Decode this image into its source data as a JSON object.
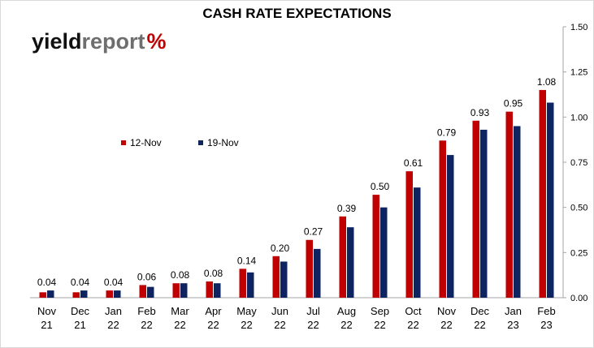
{
  "chart_data": {
    "type": "bar",
    "title": "CASH RATE EXPECTATIONS",
    "categories": [
      "Nov\n21",
      "Dec\n21",
      "Jan\n22",
      "Feb\n22",
      "Mar\n22",
      "Apr\n22",
      "May\n22",
      "Jun\n22",
      "Jul\n22",
      "Aug\n22",
      "Sep\n22",
      "Oct\n22",
      "Nov\n22",
      "Dec\n22",
      "Jan\n23",
      "Feb\n23"
    ],
    "series": [
      {
        "name": "12-Nov",
        "color": "#c00000",
        "values": [
          0.03,
          0.03,
          0.04,
          0.07,
          0.08,
          0.09,
          0.16,
          0.23,
          0.32,
          0.45,
          0.57,
          0.7,
          0.87,
          0.98,
          1.03,
          1.15
        ]
      },
      {
        "name": "19-Nov",
        "color": "#0d2461",
        "values": [
          0.04,
          0.04,
          0.04,
          0.06,
          0.08,
          0.08,
          0.14,
          0.2,
          0.27,
          0.39,
          0.5,
          0.61,
          0.79,
          0.93,
          0.95,
          1.08
        ]
      }
    ],
    "data_labels": [
      "0.04",
      "0.04",
      "0.04",
      "0.06",
      "0.08",
      "0.08",
      "0.14",
      "0.20",
      "0.27",
      "0.39",
      "0.50",
      "0.61",
      "0.79",
      "0.93",
      "0.95",
      "1.08"
    ],
    "y_ticks": [
      "0.00",
      "0.25",
      "0.50",
      "0.75",
      "1.00",
      "1.25",
      "1.50"
    ],
    "ylim": [
      0,
      1.5
    ],
    "y_axis_side": "right",
    "legend_position": "upper-left",
    "grid": false
  },
  "logo": {
    "part1": "yield",
    "part2": "report",
    "part3": "%"
  }
}
